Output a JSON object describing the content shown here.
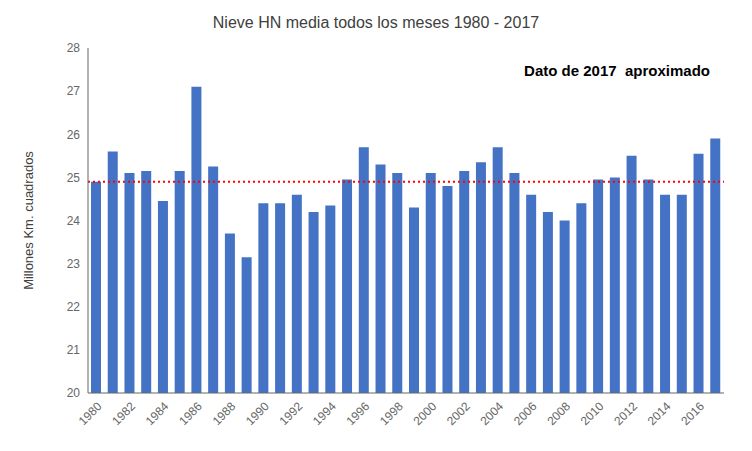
{
  "chart_data": {
    "type": "bar",
    "title": "Nieve HN media todos los meses 1980 - 2017",
    "y_label": "Millones Km. cuadrados",
    "annotation": "Dato de 2017  aproximado",
    "categories": [
      "1980",
      null,
      "1982",
      null,
      "1984",
      null,
      "1986",
      null,
      "1988",
      null,
      "1990",
      null,
      "1992",
      null,
      "1994",
      null,
      "1996",
      null,
      "1998",
      null,
      "2000",
      null,
      "2002",
      null,
      "2004",
      null,
      "2006",
      null,
      "2008",
      null,
      "2010",
      null,
      "2012",
      null,
      "2014",
      null,
      "2016",
      null
    ],
    "values": [
      24.9,
      25.6,
      25.1,
      25.15,
      24.45,
      25.15,
      27.1,
      25.25,
      23.7,
      23.15,
      24.4,
      24.4,
      24.6,
      24.2,
      24.35,
      24.95,
      25.7,
      25.3,
      25.1,
      24.3,
      25.1,
      24.8,
      25.15,
      25.35,
      25.7,
      25.1,
      24.6,
      24.2,
      24.0,
      24.4,
      24.95,
      25.0,
      25.5,
      24.95,
      24.6,
      24.6,
      25.55,
      25.9
    ],
    "color": "#4472C4",
    "reference_line": {
      "value": 24.9,
      "color": "red"
    },
    "ylim": [
      20,
      28
    ],
    "yticks": [
      20,
      21,
      22,
      23,
      24,
      25,
      26,
      27,
      28
    ],
    "grid": false
  }
}
